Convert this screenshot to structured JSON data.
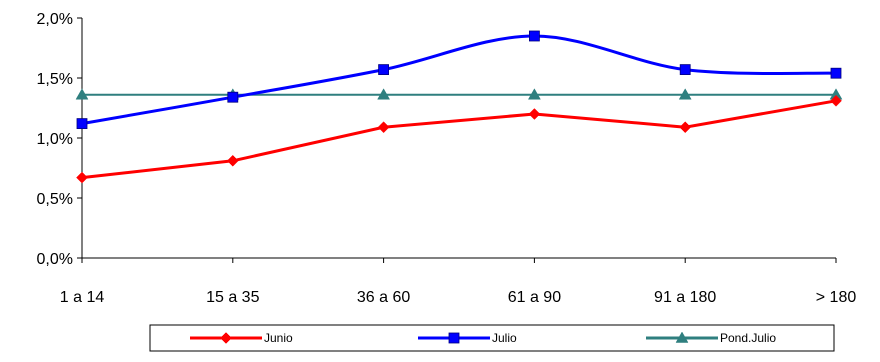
{
  "chart_data": {
    "type": "line",
    "categories": [
      "1 a 14",
      "15 a 35",
      "36 a 60",
      "61 a 90",
      "91 a 180",
      "> 180"
    ],
    "y_ticks": [
      "0,0%",
      "0,5%",
      "1,0%",
      "1,5%",
      "2,0%"
    ],
    "ylim": [
      0,
      2.0
    ],
    "grid": false,
    "legend_position": "bottom",
    "series": [
      {
        "name": "Junio",
        "color": "#ff0000",
        "marker": "diamond",
        "values": [
          0.67,
          0.81,
          1.09,
          1.2,
          1.09,
          1.31
        ],
        "smooth": false
      },
      {
        "name": "Julio",
        "color": "#0000ff",
        "marker": "square",
        "values": [
          1.12,
          1.34,
          1.57,
          1.85,
          1.57,
          1.54
        ],
        "smooth": true
      },
      {
        "name": "Pond.Julio",
        "color": "#2f7f7f",
        "marker": "triangle",
        "values": [
          1.36,
          1.36,
          1.36,
          1.36,
          1.36,
          1.36
        ],
        "smooth": false
      }
    ]
  }
}
